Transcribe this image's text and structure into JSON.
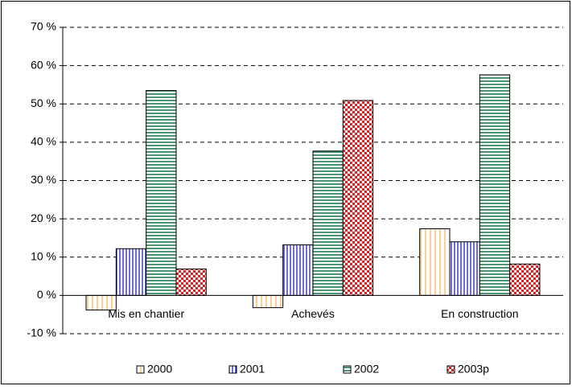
{
  "chart_data": {
    "type": "bar",
    "categories": [
      "Mis en chantier",
      "Achevés",
      "En construction"
    ],
    "series": [
      {
        "name": "2000",
        "color": "#f0a030",
        "values": [
          -3.8,
          -3.2,
          17.4
        ]
      },
      {
        "name": "2001",
        "color": "#2020c0",
        "values": [
          12.2,
          13.2,
          14.0
        ]
      },
      {
        "name": "2002",
        "color": "#107040",
        "values": [
          53.5,
          37.7,
          57.6
        ]
      },
      {
        "name": "2003p",
        "color": "#e02020",
        "values": [
          6.9,
          50.9,
          8.2
        ]
      }
    ],
    "ylim": [
      -10,
      70
    ],
    "yticks": [
      {
        "value": -10,
        "label": "-10 %"
      },
      {
        "value": 0,
        "label": "0 %"
      },
      {
        "value": 10,
        "label": "10 %"
      },
      {
        "value": 20,
        "label": "20 %"
      },
      {
        "value": 30,
        "label": "30 %"
      },
      {
        "value": 40,
        "label": "40 %"
      },
      {
        "value": 50,
        "label": "50 %"
      },
      {
        "value": 60,
        "label": "60 %"
      },
      {
        "value": 70,
        "label": "70 %"
      }
    ],
    "grid": true,
    "legend": "bottom"
  }
}
